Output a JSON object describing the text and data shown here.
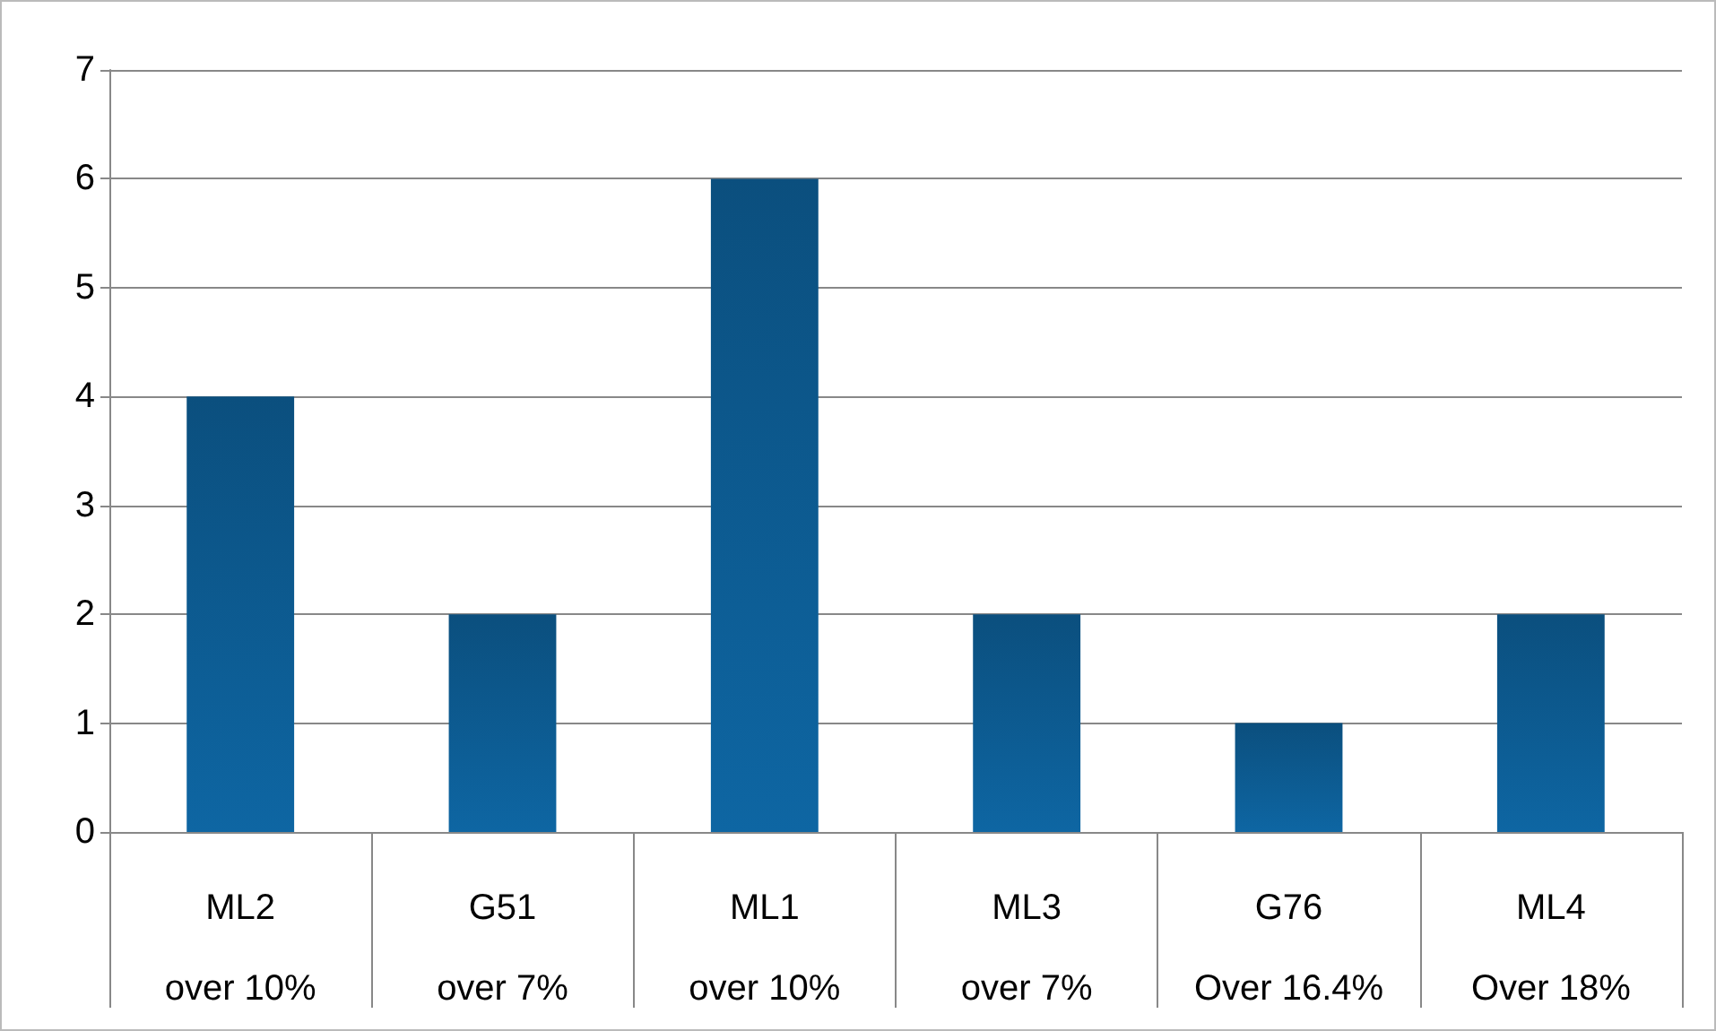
{
  "chart_data": {
    "type": "bar",
    "categories": [
      "ML2\nover 10%",
      "G51\nover 7%",
      "ML1\nover 10%",
      "ML3\nover 7%",
      "G76\nOver 16.4%",
      "ML4\nOver 18%"
    ],
    "values": [
      4,
      2,
      6,
      2,
      1,
      2
    ],
    "color": "#0b4f7e",
    "ylim": [
      0,
      7
    ],
    "yticks": [
      0,
      1,
      2,
      3,
      4,
      5,
      6,
      7
    ],
    "grid": "y"
  }
}
